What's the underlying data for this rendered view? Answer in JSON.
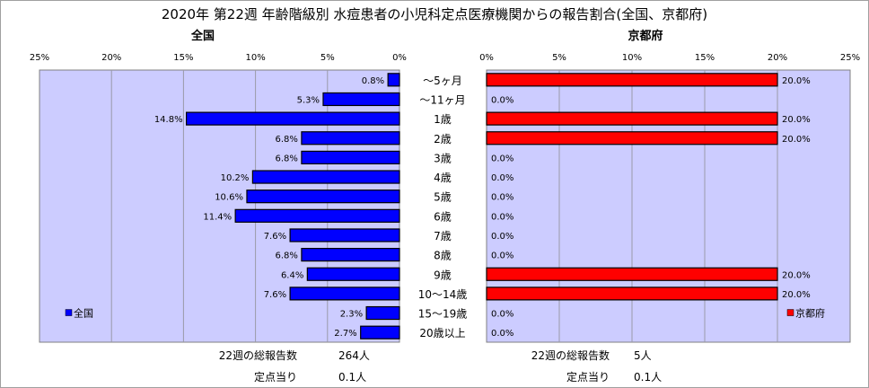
{
  "chart_data": {
    "title": "2020年 第22週 年齢階級別 水痘患者の小児科定点医療機関からの報告割合(全国、京都府)",
    "categories": [
      "～5ヶ月",
      "～11ヶ月",
      "1歳",
      "2歳",
      "3歳",
      "4歳",
      "5歳",
      "6歳",
      "7歳",
      "8歳",
      "9歳",
      "10～14歳",
      "15～19歳",
      "20歳以上"
    ],
    "x_ticks": [
      "25%",
      "20%",
      "15%",
      "10%",
      "5%",
      "0%"
    ],
    "x_ticks_right": [
      "0%",
      "5%",
      "10%",
      "15%",
      "20%",
      "25%"
    ],
    "panels": [
      {
        "type": "bar",
        "orientation": "horizontal",
        "title": "全国",
        "legend": "全国",
        "legend_position": "bottom-left",
        "xlim": [
          0,
          25
        ],
        "direction": "reversed",
        "grid": true,
        "values": [
          0.8,
          5.3,
          14.8,
          6.8,
          6.8,
          10.2,
          10.6,
          11.4,
          7.6,
          6.8,
          6.4,
          7.6,
          2.3,
          2.7
        ],
        "value_labels": [
          "0.8%",
          "5.3%",
          "14.8%",
          "6.8%",
          "6.8%",
          "10.2%",
          "10.6%",
          "11.4%",
          "7.6%",
          "6.8%",
          "6.4%",
          "7.6%",
          "2.3%",
          "2.7%"
        ],
        "bar_color": "#0000ff",
        "plot_background": "#ccccff",
        "footer": [
          {
            "label": "22週の総報告数",
            "value": "264人"
          },
          {
            "label": "定点当り",
            "value": "0.1人"
          }
        ]
      },
      {
        "type": "bar",
        "orientation": "horizontal",
        "title": "京都府",
        "legend": "京都府",
        "legend_position": "bottom-right",
        "xlim": [
          0,
          25
        ],
        "direction": "normal",
        "grid": true,
        "values": [
          20.0,
          0.0,
          20.0,
          20.0,
          0.0,
          0.0,
          0.0,
          0.0,
          0.0,
          0.0,
          20.0,
          20.0,
          0.0,
          0.0
        ],
        "value_labels": [
          "20.0%",
          "0.0%",
          "20.0%",
          "20.0%",
          "0.0%",
          "0.0%",
          "0.0%",
          "0.0%",
          "0.0%",
          "0.0%",
          "20.0%",
          "20.0%",
          "0.0%",
          "0.0%"
        ],
        "bar_color": "#ff0000",
        "plot_background": "#ccccff",
        "footer": [
          {
            "label": "22週の総報告数",
            "value": "5人"
          },
          {
            "label": "定点当り",
            "value": "0.1人"
          }
        ]
      }
    ]
  }
}
